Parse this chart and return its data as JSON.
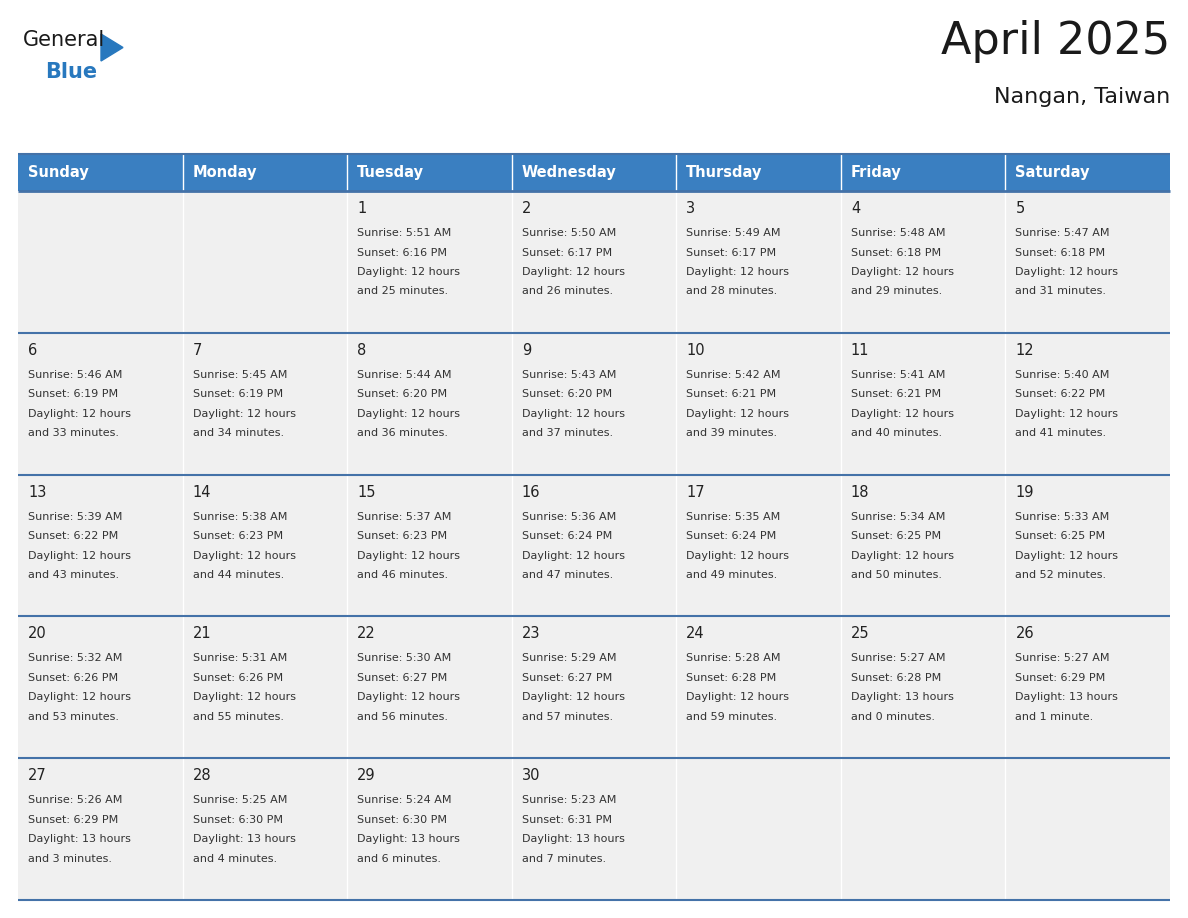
{
  "title": "April 2025",
  "subtitle": "Nangan, Taiwan",
  "header_color": "#3A7FC1",
  "header_text_color": "#FFFFFF",
  "weekdays": [
    "Sunday",
    "Monday",
    "Tuesday",
    "Wednesday",
    "Thursday",
    "Friday",
    "Saturday"
  ],
  "row_bg": "#F0F0F0",
  "border_color": "#4472A8",
  "text_color": "#333333",
  "day_number_color": "#222222",
  "calendar": [
    [
      {
        "day": "",
        "sunrise": "",
        "sunset": "",
        "daylight": ""
      },
      {
        "day": "",
        "sunrise": "",
        "sunset": "",
        "daylight": ""
      },
      {
        "day": "1",
        "sunrise": "Sunrise: 5:51 AM",
        "sunset": "Sunset: 6:16 PM",
        "daylight": "Daylight: 12 hours\nand 25 minutes."
      },
      {
        "day": "2",
        "sunrise": "Sunrise: 5:50 AM",
        "sunset": "Sunset: 6:17 PM",
        "daylight": "Daylight: 12 hours\nand 26 minutes."
      },
      {
        "day": "3",
        "sunrise": "Sunrise: 5:49 AM",
        "sunset": "Sunset: 6:17 PM",
        "daylight": "Daylight: 12 hours\nand 28 minutes."
      },
      {
        "day": "4",
        "sunrise": "Sunrise: 5:48 AM",
        "sunset": "Sunset: 6:18 PM",
        "daylight": "Daylight: 12 hours\nand 29 minutes."
      },
      {
        "day": "5",
        "sunrise": "Sunrise: 5:47 AM",
        "sunset": "Sunset: 6:18 PM",
        "daylight": "Daylight: 12 hours\nand 31 minutes."
      }
    ],
    [
      {
        "day": "6",
        "sunrise": "Sunrise: 5:46 AM",
        "sunset": "Sunset: 6:19 PM",
        "daylight": "Daylight: 12 hours\nand 33 minutes."
      },
      {
        "day": "7",
        "sunrise": "Sunrise: 5:45 AM",
        "sunset": "Sunset: 6:19 PM",
        "daylight": "Daylight: 12 hours\nand 34 minutes."
      },
      {
        "day": "8",
        "sunrise": "Sunrise: 5:44 AM",
        "sunset": "Sunset: 6:20 PM",
        "daylight": "Daylight: 12 hours\nand 36 minutes."
      },
      {
        "day": "9",
        "sunrise": "Sunrise: 5:43 AM",
        "sunset": "Sunset: 6:20 PM",
        "daylight": "Daylight: 12 hours\nand 37 minutes."
      },
      {
        "day": "10",
        "sunrise": "Sunrise: 5:42 AM",
        "sunset": "Sunset: 6:21 PM",
        "daylight": "Daylight: 12 hours\nand 39 minutes."
      },
      {
        "day": "11",
        "sunrise": "Sunrise: 5:41 AM",
        "sunset": "Sunset: 6:21 PM",
        "daylight": "Daylight: 12 hours\nand 40 minutes."
      },
      {
        "day": "12",
        "sunrise": "Sunrise: 5:40 AM",
        "sunset": "Sunset: 6:22 PM",
        "daylight": "Daylight: 12 hours\nand 41 minutes."
      }
    ],
    [
      {
        "day": "13",
        "sunrise": "Sunrise: 5:39 AM",
        "sunset": "Sunset: 6:22 PM",
        "daylight": "Daylight: 12 hours\nand 43 minutes."
      },
      {
        "day": "14",
        "sunrise": "Sunrise: 5:38 AM",
        "sunset": "Sunset: 6:23 PM",
        "daylight": "Daylight: 12 hours\nand 44 minutes."
      },
      {
        "day": "15",
        "sunrise": "Sunrise: 5:37 AM",
        "sunset": "Sunset: 6:23 PM",
        "daylight": "Daylight: 12 hours\nand 46 minutes."
      },
      {
        "day": "16",
        "sunrise": "Sunrise: 5:36 AM",
        "sunset": "Sunset: 6:24 PM",
        "daylight": "Daylight: 12 hours\nand 47 minutes."
      },
      {
        "day": "17",
        "sunrise": "Sunrise: 5:35 AM",
        "sunset": "Sunset: 6:24 PM",
        "daylight": "Daylight: 12 hours\nand 49 minutes."
      },
      {
        "day": "18",
        "sunrise": "Sunrise: 5:34 AM",
        "sunset": "Sunset: 6:25 PM",
        "daylight": "Daylight: 12 hours\nand 50 minutes."
      },
      {
        "day": "19",
        "sunrise": "Sunrise: 5:33 AM",
        "sunset": "Sunset: 6:25 PM",
        "daylight": "Daylight: 12 hours\nand 52 minutes."
      }
    ],
    [
      {
        "day": "20",
        "sunrise": "Sunrise: 5:32 AM",
        "sunset": "Sunset: 6:26 PM",
        "daylight": "Daylight: 12 hours\nand 53 minutes."
      },
      {
        "day": "21",
        "sunrise": "Sunrise: 5:31 AM",
        "sunset": "Sunset: 6:26 PM",
        "daylight": "Daylight: 12 hours\nand 55 minutes."
      },
      {
        "day": "22",
        "sunrise": "Sunrise: 5:30 AM",
        "sunset": "Sunset: 6:27 PM",
        "daylight": "Daylight: 12 hours\nand 56 minutes."
      },
      {
        "day": "23",
        "sunrise": "Sunrise: 5:29 AM",
        "sunset": "Sunset: 6:27 PM",
        "daylight": "Daylight: 12 hours\nand 57 minutes."
      },
      {
        "day": "24",
        "sunrise": "Sunrise: 5:28 AM",
        "sunset": "Sunset: 6:28 PM",
        "daylight": "Daylight: 12 hours\nand 59 minutes."
      },
      {
        "day": "25",
        "sunrise": "Sunrise: 5:27 AM",
        "sunset": "Sunset: 6:28 PM",
        "daylight": "Daylight: 13 hours\nand 0 minutes."
      },
      {
        "day": "26",
        "sunrise": "Sunrise: 5:27 AM",
        "sunset": "Sunset: 6:29 PM",
        "daylight": "Daylight: 13 hours\nand 1 minute."
      }
    ],
    [
      {
        "day": "27",
        "sunrise": "Sunrise: 5:26 AM",
        "sunset": "Sunset: 6:29 PM",
        "daylight": "Daylight: 13 hours\nand 3 minutes."
      },
      {
        "day": "28",
        "sunrise": "Sunrise: 5:25 AM",
        "sunset": "Sunset: 6:30 PM",
        "daylight": "Daylight: 13 hours\nand 4 minutes."
      },
      {
        "day": "29",
        "sunrise": "Sunrise: 5:24 AM",
        "sunset": "Sunset: 6:30 PM",
        "daylight": "Daylight: 13 hours\nand 6 minutes."
      },
      {
        "day": "30",
        "sunrise": "Sunrise: 5:23 AM",
        "sunset": "Sunset: 6:31 PM",
        "daylight": "Daylight: 13 hours\nand 7 minutes."
      },
      {
        "day": "",
        "sunrise": "",
        "sunset": "",
        "daylight": ""
      },
      {
        "day": "",
        "sunrise": "",
        "sunset": "",
        "daylight": ""
      },
      {
        "day": "",
        "sunrise": "",
        "sunset": "",
        "daylight": ""
      }
    ]
  ],
  "logo_text_general": "General",
  "logo_text_blue": "Blue",
  "logo_color_general": "#1a1a1a",
  "logo_color_blue": "#2878BE",
  "logo_triangle_color": "#2878BE"
}
